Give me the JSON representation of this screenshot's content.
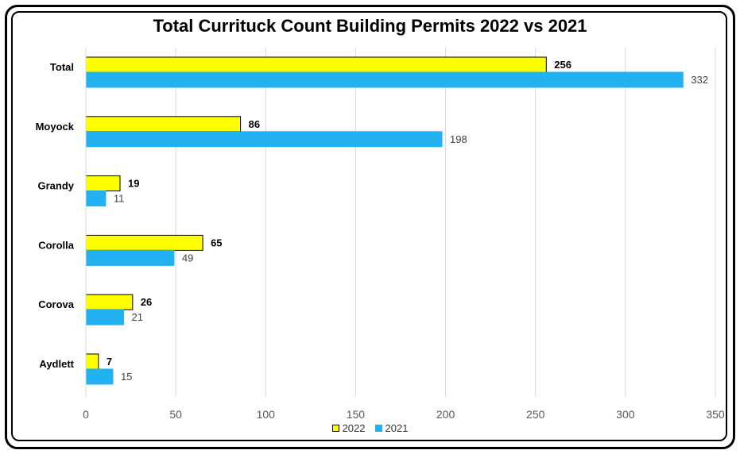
{
  "chart_data": {
    "type": "bar",
    "orientation": "horizontal",
    "title": "Total Currituck Count Building Permits 2022 vs 2021",
    "categories": [
      "Total",
      "Moyock",
      "Grandy",
      "Corolla",
      "Corova",
      "Aydlett"
    ],
    "series": [
      {
        "name": "2022",
        "values": [
          256,
          86,
          19,
          65,
          26,
          7
        ],
        "color": "#ffff00",
        "stroke": "#000000",
        "label_bold": true
      },
      {
        "name": "2021",
        "values": [
          332,
          198,
          11,
          49,
          21,
          15
        ],
        "color": "#22b1f1",
        "stroke": "#22b1f1",
        "label_bold": false
      }
    ],
    "xlim": [
      0,
      350
    ],
    "xticks": [
      "0",
      "50",
      "100",
      "150",
      "200",
      "250",
      "300",
      "350"
    ],
    "xlabel": "",
    "ylabel": "",
    "grid": "vertical",
    "legend": "bottom-center"
  },
  "colors": {
    "grid": "#d9d9d9",
    "tick_text": "#595959",
    "category_text": "#000000",
    "value_label_2021": "#404040",
    "value_label_2022": "#000000"
  }
}
